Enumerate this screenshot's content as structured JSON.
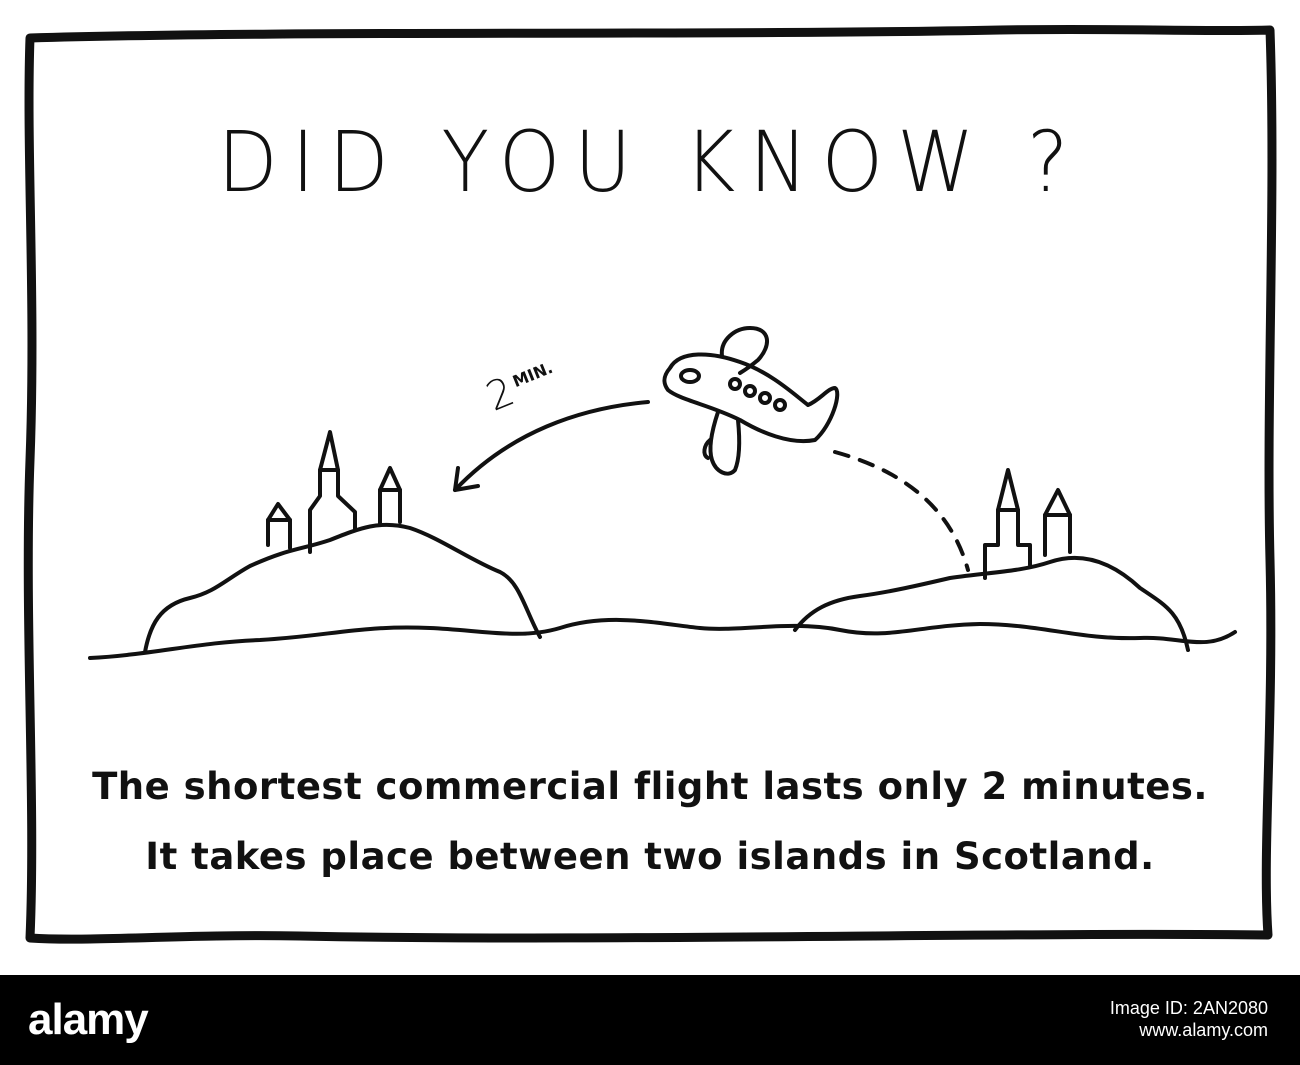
{
  "cartoon": {
    "title": "DID  YOU  KNOW ?",
    "flight_label_number": "2",
    "flight_label_unit": "MIN.",
    "caption_line1": "The shortest commercial flight lasts only 2 minutes.",
    "caption_line2": "It takes place between two islands in Scotland."
  },
  "footer": {
    "brand": "alamy",
    "watermark_line1": "Image ID: 2AN2080",
    "watermark_line2": "www.alamy.com"
  },
  "icons": {
    "plane": "plane-icon",
    "island_left": "island-icon",
    "island_right": "island-icon"
  },
  "colors": {
    "ink": "#111111",
    "background": "#ffffff",
    "footer": "#000000"
  }
}
